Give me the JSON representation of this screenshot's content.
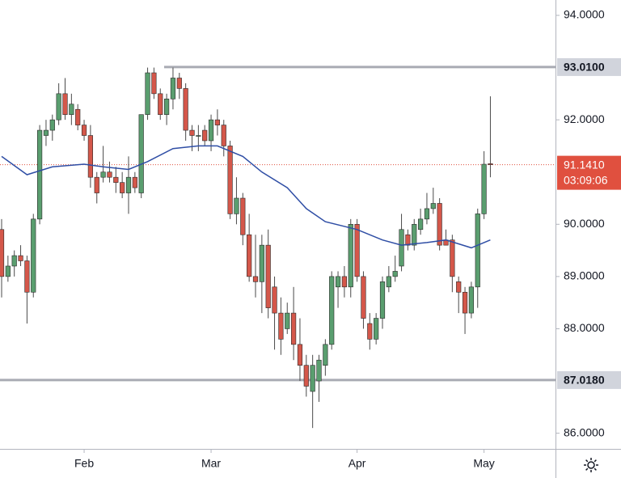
{
  "chart_data": {
    "type": "candlestick",
    "open": [
      89.9,
      89.0,
      89.2,
      89.4,
      89.3,
      88.7,
      90.1,
      91.7,
      91.8,
      92.0,
      92.5,
      92.1,
      92.2,
      91.9,
      91.7,
      90.9,
      90.9,
      91.0,
      90.9,
      90.8,
      90.6,
      90.9,
      90.6,
      92.1,
      92.9,
      92.5,
      92.1,
      92.4,
      92.8,
      92.6,
      91.8,
      91.7,
      91.8,
      91.6,
      92.0,
      91.9,
      91.5,
      90.2,
      90.5,
      89.8,
      89.0,
      88.9,
      89.6,
      88.8,
      88.3,
      88.0,
      88.3,
      87.7,
      87.3,
      86.8,
      87.0,
      87.3,
      87.7,
      88.8,
      89.0,
      88.8,
      90.0,
      89.0,
      88.1,
      87.8,
      88.2,
      88.8,
      89.0,
      89.2,
      89.8,
      89.6,
      89.9,
      90.1,
      90.3,
      90.4,
      89.7,
      89.7,
      88.9,
      88.7,
      88.3,
      88.8,
      90.2,
      91.16
    ],
    "high": [
      90.1,
      89.4,
      89.5,
      89.6,
      89.4,
      90.2,
      91.9,
      92.0,
      92.1,
      92.7,
      92.8,
      92.5,
      92.3,
      92.0,
      91.9,
      91.0,
      91.5,
      91.2,
      91.1,
      91.0,
      91.3,
      91.0,
      92.1,
      93.0,
      93.0,
      92.6,
      92.5,
      93.0,
      92.9,
      92.7,
      91.9,
      91.9,
      91.9,
      92.1,
      92.2,
      92.0,
      91.6,
      90.9,
      90.6,
      90.2,
      89.8,
      89.8,
      89.9,
      89.0,
      88.6,
      88.5,
      88.8,
      88.2,
      87.5,
      87.5,
      87.5,
      87.8,
      89.1,
      89.1,
      89.2,
      90.1,
      90.1,
      89.1,
      88.3,
      88.3,
      89.0,
      89.2,
      89.4,
      90.2,
      89.9,
      90.1,
      90.3,
      90.6,
      90.7,
      90.5,
      89.9,
      89.8,
      89.0,
      88.8,
      88.9,
      90.3,
      91.4,
      92.45
    ],
    "low": [
      88.6,
      88.9,
      89.0,
      89.2,
      88.1,
      88.6,
      90.0,
      91.5,
      91.6,
      91.9,
      92.0,
      91.9,
      91.8,
      91.6,
      90.7,
      90.4,
      90.8,
      90.8,
      90.6,
      90.5,
      90.2,
      90.6,
      90.5,
      92.0,
      92.4,
      92.0,
      91.9,
      92.2,
      92.4,
      91.6,
      91.4,
      91.4,
      91.5,
      91.4,
      91.7,
      91.3,
      90.1,
      90.0,
      89.6,
      88.9,
      88.6,
      88.3,
      88.2,
      87.6,
      87.5,
      87.9,
      87.4,
      87.0,
      86.7,
      86.1,
      86.6,
      87.1,
      87.6,
      88.4,
      88.6,
      88.6,
      88.9,
      88.0,
      87.6,
      87.7,
      88.0,
      88.7,
      88.9,
      89.1,
      89.5,
      89.5,
      89.8,
      90.0,
      90.2,
      89.5,
      89.6,
      88.7,
      88.3,
      87.9,
      88.2,
      88.4,
      90.1,
      90.9
    ],
    "close": [
      89.0,
      89.2,
      89.4,
      89.3,
      88.7,
      90.1,
      91.8,
      91.8,
      92.0,
      92.5,
      92.1,
      92.3,
      91.9,
      91.7,
      90.9,
      90.6,
      91.0,
      90.9,
      90.8,
      90.6,
      90.9,
      90.7,
      92.1,
      92.9,
      92.5,
      92.1,
      92.4,
      92.8,
      92.6,
      91.8,
      91.7,
      91.7,
      91.6,
      92.0,
      91.9,
      91.5,
      90.2,
      90.5,
      89.8,
      89.0,
      88.9,
      89.6,
      88.4,
      88.3,
      87.8,
      88.3,
      87.7,
      87.3,
      86.9,
      87.3,
      87.4,
      87.7,
      89.0,
      89.0,
      88.8,
      90.0,
      89.0,
      88.2,
      87.8,
      88.2,
      88.9,
      89.0,
      89.1,
      89.9,
      89.6,
      90.0,
      90.1,
      90.3,
      90.4,
      89.6,
      89.6,
      89.0,
      88.7,
      88.3,
      88.8,
      90.2,
      91.15,
      91.141
    ],
    "up_color": "#5a9e6f",
    "down_color": "#d4574a",
    "moving_average": {
      "color": "#2f4ea5",
      "x": [
        0,
        4,
        8,
        13,
        16,
        20,
        23,
        27,
        31,
        34,
        38,
        41,
        45,
        48,
        51,
        56,
        60,
        63,
        67,
        70,
        74,
        77
      ],
      "values": [
        91.3,
        90.95,
        91.1,
        91.15,
        91.1,
        91.05,
        91.2,
        91.45,
        91.5,
        91.5,
        91.3,
        91.0,
        90.7,
        90.3,
        90.05,
        89.9,
        89.7,
        89.6,
        89.65,
        89.7,
        89.55,
        89.7
      ]
    },
    "xticks": [
      {
        "value": 13,
        "label": "Feb"
      },
      {
        "value": 33,
        "label": "Mar"
      },
      {
        "value": 56,
        "label": "Apr"
      },
      {
        "value": 76,
        "label": "May"
      }
    ],
    "ylim": [
      85.7,
      94.294
    ],
    "yticks": [
      {
        "value": 86,
        "label": "86.0000"
      },
      {
        "value": 88,
        "label": "88.0000"
      },
      {
        "value": 89,
        "label": "89.0000"
      },
      {
        "value": 90,
        "label": "90.0000"
      },
      {
        "value": 92,
        "label": "92.0000"
      },
      {
        "value": 94,
        "label": "94.0000"
      }
    ],
    "levels": [
      {
        "value": 93.01,
        "label": "93.0100"
      },
      {
        "value": 87.018,
        "label": "87.0180"
      }
    ],
    "last_price": {
      "value": 91.141,
      "label": "91.1410",
      "countdown": "03:09:06",
      "color": "#e0503f"
    }
  }
}
